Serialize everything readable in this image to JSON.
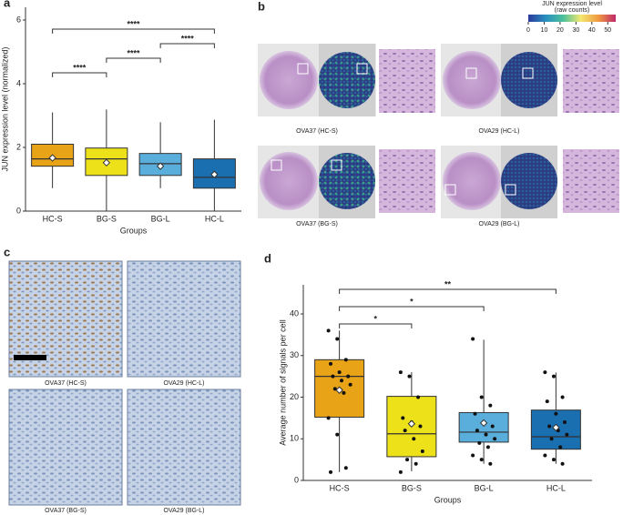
{
  "chart_data": [
    {
      "type": "box",
      "panel_label": "a",
      "xlabel": "Groups",
      "ylabel": "JUN expression level (normalized)",
      "categories": [
        "HC-S",
        "BG-S",
        "BG-L",
        "HC-L"
      ],
      "colors": [
        "#e8a317",
        "#ede21a",
        "#5aaedc",
        "#1a6fb0"
      ],
      "ylim": [
        0,
        6.4
      ],
      "yticks": [
        0,
        2,
        4,
        6
      ],
      "stats": [
        {
          "min": 0.72,
          "q1": 1.41,
          "median": 1.64,
          "q3": 2.1,
          "max": 3.1,
          "mean": 1.67
        },
        {
          "min": 0,
          "q1": 1.12,
          "median": 1.64,
          "q3": 1.98,
          "max": 3.19,
          "mean": 1.52
        },
        {
          "min": 0.72,
          "q1": 1.12,
          "median": 1.49,
          "q3": 1.81,
          "max": 2.79,
          "mean": 1.41
        },
        {
          "min": 0,
          "q1": 0.72,
          "median": 1.06,
          "q3": 1.64,
          "max": 2.87,
          "mean": 1.15
        }
      ],
      "comparisons": [
        {
          "groups": [
            "HC-S",
            "BG-S"
          ],
          "label": "****"
        },
        {
          "groups": [
            "BG-S",
            "BG-L"
          ],
          "label": "****"
        },
        {
          "groups": [
            "BG-L",
            "HC-L"
          ],
          "label": "****"
        },
        {
          "groups": [
            "HC-S",
            "HC-L"
          ],
          "label": "****"
        }
      ]
    },
    {
      "type": "box",
      "panel_label": "d",
      "xlabel": "Groups",
      "ylabel": "Average number of signals per cell",
      "categories": [
        "HC-S",
        "BG-S",
        "BG-L",
        "HC-L"
      ],
      "colors": [
        "#e8a317",
        "#ede21a",
        "#5aaedc",
        "#1a6fb0"
      ],
      "ylim": [
        0,
        47
      ],
      "yticks": [
        0,
        10,
        20,
        30,
        40
      ],
      "stats": [
        {
          "min": 2,
          "q1": 15.2,
          "median": 25,
          "q3": 29,
          "max": 36,
          "mean": 21.7
        },
        {
          "min": 2.2,
          "q1": 5.7,
          "median": 11.2,
          "q3": 20.2,
          "max": 26,
          "mean": 13.6
        },
        {
          "min": 4,
          "q1": 9.2,
          "median": 11.6,
          "q3": 16.3,
          "max": 33.8,
          "mean": 13.8
        },
        {
          "min": 4,
          "q1": 7.5,
          "median": 10.5,
          "q3": 16.9,
          "max": 25.9,
          "mean": 12.7
        }
      ],
      "points": [
        [
          36,
          34,
          29,
          28,
          26,
          25,
          25,
          24,
          23,
          22,
          21,
          15,
          11,
          3,
          2
        ],
        [
          26,
          25,
          20,
          15,
          14,
          13,
          12,
          10,
          7,
          5,
          4,
          2
        ],
        [
          34,
          20,
          18,
          16,
          14,
          13,
          12,
          11,
          10,
          9,
          8,
          6,
          5,
          4
        ],
        [
          26,
          25,
          20,
          19,
          16,
          14,
          13,
          12,
          11,
          10,
          8,
          6,
          5,
          4
        ]
      ],
      "comparisons": [
        {
          "groups": [
            "HC-S",
            "BG-S"
          ],
          "label": "*"
        },
        {
          "groups": [
            "HC-S",
            "BG-L"
          ],
          "label": "*"
        },
        {
          "groups": [
            "HC-S",
            "HC-L"
          ],
          "label": "**"
        }
      ]
    }
  ],
  "panel_b": {
    "panel_label": "b",
    "colorbar": {
      "title": [
        "JUN expression level",
        "(raw counts)"
      ],
      "lim": [
        0,
        55
      ],
      "ticks": [
        0,
        10,
        20,
        30,
        40,
        50
      ]
    },
    "samples": [
      "OVA37 (HC-S)",
      "OVA29 (HC-L)",
      "OVA37 (BG-S)",
      "OVA29 (BG-L)"
    ]
  },
  "panel_c": {
    "panel_label": "c",
    "samples": [
      "OVA37 (HC-S)",
      "OVA29 (HC-L)",
      "OVA37 (BG-S)",
      "OVA29 (BG-L)"
    ]
  }
}
